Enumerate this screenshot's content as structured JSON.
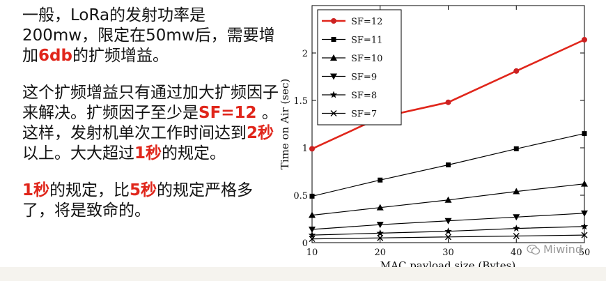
{
  "text_panel": {
    "p1": [
      {
        "t": "一般，LoRa的发射功率是200mw，限定在50mw后，需要增加",
        "hl": false
      },
      {
        "t": "6db",
        "hl": true
      },
      {
        "t": "的扩频增益。",
        "hl": false
      }
    ],
    "p2": [
      {
        "t": "这个扩频增益只有通过加大扩频因子来解决。扩频因子至少是",
        "hl": false
      },
      {
        "t": "SF=12",
        "hl": true
      },
      {
        "t": " 。这样，发射机单次工作时间达到",
        "hl": false
      },
      {
        "t": "2秒",
        "hl": true
      },
      {
        "t": "以上。大大超过",
        "hl": false
      },
      {
        "t": "1秒",
        "hl": true
      },
      {
        "t": "的规定。",
        "hl": false
      }
    ],
    "p3": [
      {
        "t": "1秒",
        "hl": true
      },
      {
        "t": "的规定，比",
        "hl": false
      },
      {
        "t": "5秒",
        "hl": true
      },
      {
        "t": "的规定严格多了，将是致命的。",
        "hl": false
      }
    ]
  },
  "watermark": {
    "text": "Miwind"
  },
  "colors": {
    "highlight": "#e0261b",
    "sf12_line": "#e0261b",
    "sf12_marker": "#cc2222",
    "series": "#000000"
  },
  "chart_data": {
    "type": "line",
    "xlabel": "MAC payload size (Bytes)",
    "ylabel": "Time on Air (sec)",
    "x": [
      10,
      20,
      30,
      40,
      50
    ],
    "xticks": [
      "10",
      "20",
      "30",
      "40",
      "50"
    ],
    "yticks": [
      "0",
      "0.5",
      "1",
      "1.5",
      "2"
    ],
    "xlim": [
      10,
      50
    ],
    "ylim": [
      0,
      2.5
    ],
    "legend_position": "top-left",
    "grid": false,
    "series": [
      {
        "name": "SF=12",
        "marker": "circle",
        "values": [
          0.99,
          1.32,
          1.48,
          1.81,
          2.14
        ]
      },
      {
        "name": "SF=11",
        "marker": "square",
        "values": [
          0.49,
          0.66,
          0.82,
          0.99,
          1.15
        ]
      },
      {
        "name": "SF=10",
        "marker": "triangle-up",
        "values": [
          0.29,
          0.37,
          0.45,
          0.54,
          0.62
        ]
      },
      {
        "name": "SF=9",
        "marker": "triangle-down",
        "values": [
          0.14,
          0.19,
          0.23,
          0.27,
          0.31
        ]
      },
      {
        "name": "SF=8",
        "marker": "star",
        "values": [
          0.08,
          0.1,
          0.12,
          0.15,
          0.17
        ]
      },
      {
        "name": "SF=7",
        "marker": "x",
        "values": [
          0.04,
          0.05,
          0.06,
          0.07,
          0.08
        ]
      }
    ]
  }
}
